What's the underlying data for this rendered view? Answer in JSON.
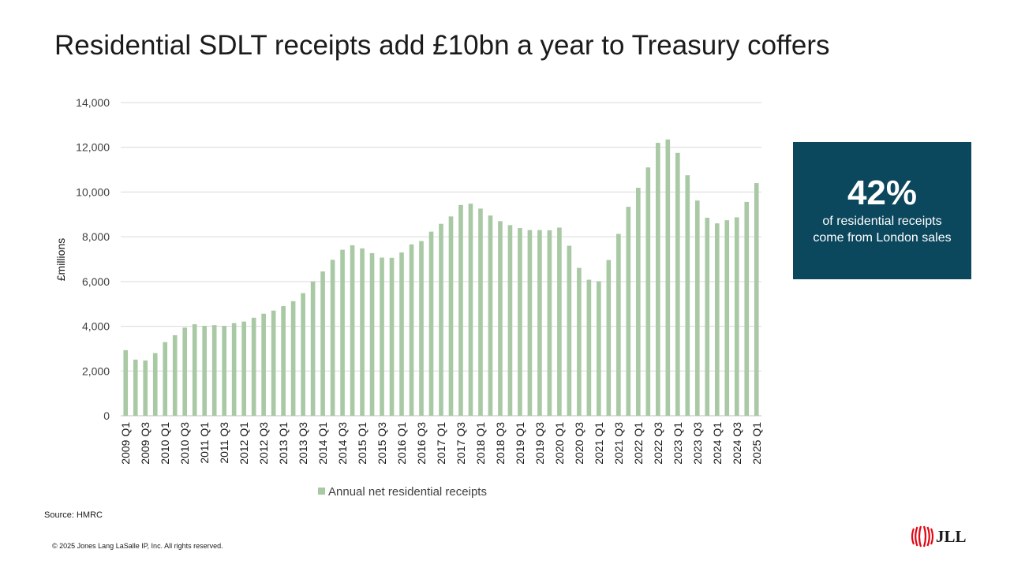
{
  "slide": {
    "title": "Residential SDLT receipts add £10bn a year to Treasury coffers",
    "callout": {
      "value": "42%",
      "line1": "of residential receipts",
      "line2": "come from London sales"
    },
    "source": "Source: HMRC",
    "copyright": "© 2025 Jones Lang LaSalle IP, Inc. All rights reserved.",
    "logo_text": "JLL"
  },
  "colors": {
    "bar": "#a8c9a4",
    "grid": "#d9d9d9",
    "callout_bg": "#0b475d",
    "logo_red": "#e30613"
  },
  "chart_data": {
    "type": "bar",
    "title": "",
    "xlabel": "",
    "ylabel": "£millions",
    "ylim": [
      0,
      14000
    ],
    "yticks": [
      0,
      2000,
      4000,
      6000,
      8000,
      10000,
      12000,
      14000
    ],
    "ytick_labels": [
      "0",
      "2,000",
      "4,000",
      "6,000",
      "8,000",
      "10,000",
      "12,000",
      "14,000"
    ],
    "grid": true,
    "legend_position": "bottom",
    "categories": [
      "2009 Q1",
      "2009 Q2",
      "2009 Q3",
      "2009 Q4",
      "2010 Q1",
      "2010 Q2",
      "2010 Q3",
      "2010 Q4",
      "2011 Q1",
      "2011 Q2",
      "2011 Q3",
      "2011 Q4",
      "2012 Q1",
      "2012 Q2",
      "2012 Q3",
      "2012 Q4",
      "2013 Q1",
      "2013 Q2",
      "2013 Q3",
      "2013 Q4",
      "2014 Q1",
      "2014 Q2",
      "2014 Q3",
      "2014 Q4",
      "2015 Q1",
      "2015 Q2",
      "2015 Q3",
      "2015 Q4",
      "2016 Q1",
      "2016 Q2",
      "2016 Q3",
      "2016 Q4",
      "2017 Q1",
      "2017 Q2",
      "2017 Q3",
      "2017 Q4",
      "2018 Q1",
      "2018 Q2",
      "2018 Q3",
      "2018 Q4",
      "2019 Q1",
      "2019 Q2",
      "2019 Q3",
      "2019 Q4",
      "2020 Q1",
      "2020 Q2",
      "2020 Q3",
      "2020 Q4",
      "2021 Q1",
      "2021 Q2",
      "2021 Q3",
      "2021 Q4",
      "2022 Q1",
      "2022 Q2",
      "2022 Q3",
      "2022 Q4",
      "2023 Q1",
      "2023 Q2",
      "2023 Q3",
      "2023 Q4",
      "2024 Q1",
      "2024 Q2",
      "2024 Q3",
      "2024 Q4",
      "2025 Q1"
    ],
    "tick_labels_shown": [
      "2009 Q1",
      "2009 Q3",
      "2010 Q1",
      "2010 Q3",
      "2011 Q1",
      "2011 Q3",
      "2012 Q1",
      "2012 Q3",
      "2013 Q1",
      "2013 Q3",
      "2014 Q1",
      "2014 Q3",
      "2015 Q1",
      "2015 Q3",
      "2016 Q1",
      "2016 Q3",
      "2017 Q1",
      "2017 Q3",
      "2018 Q1",
      "2018 Q3",
      "2019 Q1",
      "2019 Q3",
      "2020 Q1",
      "2020 Q3",
      "2021 Q1",
      "2021 Q3",
      "2022 Q1",
      "2022 Q3",
      "2023 Q1",
      "2023 Q3",
      "2024 Q1",
      "2024 Q3",
      "2025 Q1"
    ],
    "series": [
      {
        "name": "Annual net residential receipts",
        "values": [
          2930,
          2510,
          2470,
          2800,
          3290,
          3600,
          3940,
          4090,
          4020,
          4050,
          4020,
          4140,
          4210,
          4380,
          4560,
          4700,
          4900,
          5120,
          5480,
          6000,
          6450,
          6970,
          7420,
          7620,
          7480,
          7270,
          7070,
          7060,
          7300,
          7660,
          7810,
          8230,
          8580,
          8910,
          9420,
          9480,
          9260,
          8950,
          8700,
          8520,
          8390,
          8300,
          8300,
          8290,
          8410,
          7600,
          6610,
          6080,
          6010,
          6960,
          8130,
          9340,
          10190,
          11100,
          12200,
          12350,
          11750,
          10750,
          9620,
          8850,
          8600,
          8740,
          8870,
          9560,
          10400
        ]
      }
    ]
  }
}
